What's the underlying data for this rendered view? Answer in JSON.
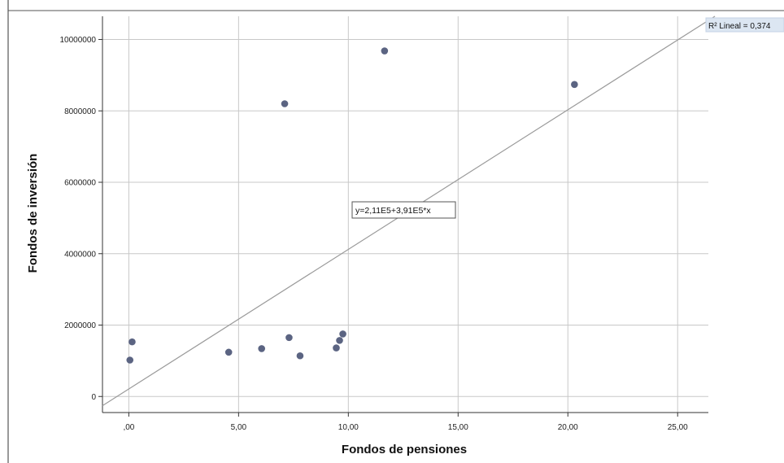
{
  "chart_data": {
    "type": "scatter",
    "xlabel": "Fondos de pensiones",
    "ylabel": "Fondos de inversión",
    "xlim": [
      -1.2,
      26.4
    ],
    "ylim": [
      -450000,
      10650000
    ],
    "x_ticks": [
      0,
      5,
      10,
      15,
      20,
      25
    ],
    "x_tick_labels": [
      ",00",
      "5,00",
      "10,00",
      "15,00",
      "20,00",
      "25,00"
    ],
    "y_ticks": [
      0,
      2000000,
      4000000,
      6000000,
      8000000,
      10000000
    ],
    "y_tick_labels": [
      "0",
      "2000000",
      "4000000",
      "6000000",
      "8000000",
      "10000000"
    ],
    "grid": true,
    "points": [
      {
        "x": 0.05,
        "y": 1020000
      },
      {
        "x": 0.15,
        "y": 1530000
      },
      {
        "x": 4.55,
        "y": 1240000
      },
      {
        "x": 6.05,
        "y": 1340000
      },
      {
        "x": 7.1,
        "y": 8200000
      },
      {
        "x": 7.3,
        "y": 1650000
      },
      {
        "x": 7.8,
        "y": 1140000
      },
      {
        "x": 9.45,
        "y": 1360000
      },
      {
        "x": 9.6,
        "y": 1570000
      },
      {
        "x": 9.75,
        "y": 1750000
      },
      {
        "x": 11.65,
        "y": 9680000
      },
      {
        "x": 20.3,
        "y": 8740000
      }
    ],
    "fit_line": {
      "intercept": 211000,
      "slope": 391000
    },
    "equation_label": "y=2,11E5+3,91E5*x",
    "r2_label": "R² Lineal = 0,374",
    "colors": {
      "point": "#5b6482",
      "line": "#9a9a9a",
      "grid": "#c8c8c8",
      "frame": "#333333"
    }
  }
}
